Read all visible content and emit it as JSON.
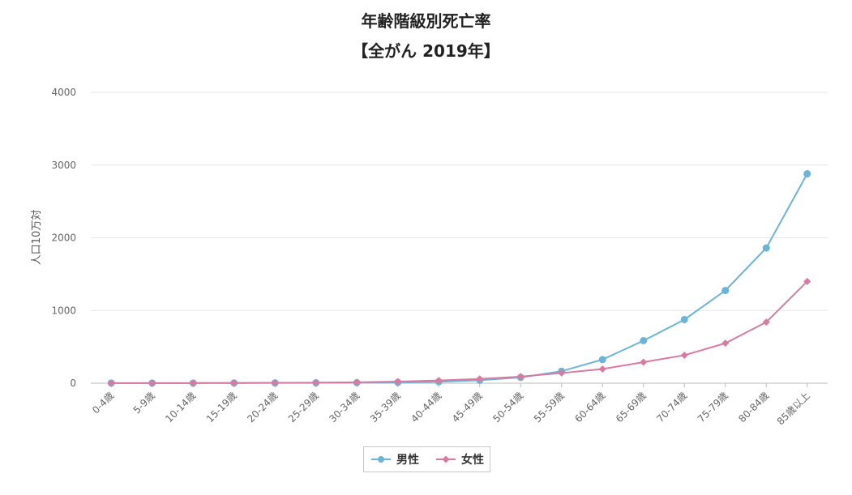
{
  "chart_data": {
    "type": "line",
    "title": "年齢階級別死亡率",
    "subtitle": "【全がん 2019年】",
    "ylabel": "人口10万対",
    "ylim": [
      0,
      4000
    ],
    "yticks": [
      0,
      1000,
      2000,
      3000,
      4000
    ],
    "grid": true,
    "legend_position": "bottom-center",
    "categories": [
      "0-4歳",
      "5-9歳",
      "10-14歳",
      "15-19歳",
      "20-24歳",
      "25-29歳",
      "30-34歳",
      "35-39歳",
      "40-44歳",
      "45-49歳",
      "50-54歳",
      "55-59歳",
      "60-64歳",
      "65-69歳",
      "70-74歳",
      "75-79歳",
      "80-84歳",
      "85歳以上"
    ],
    "series": [
      {
        "name": "男性",
        "color": "#6ab4d8",
        "marker": "circle",
        "values": [
          2,
          2,
          2,
          3,
          4,
          5,
          7,
          11,
          20,
          40,
          80,
          165,
          325,
          585,
          875,
          1275,
          1860,
          2880
        ]
      },
      {
        "name": "女性",
        "color": "#d97aa0",
        "marker": "diamond",
        "values": [
          2,
          2,
          2,
          3,
          5,
          8,
          13,
          22,
          38,
          58,
          90,
          140,
          195,
          290,
          385,
          550,
          840,
          1400
        ]
      }
    ]
  }
}
